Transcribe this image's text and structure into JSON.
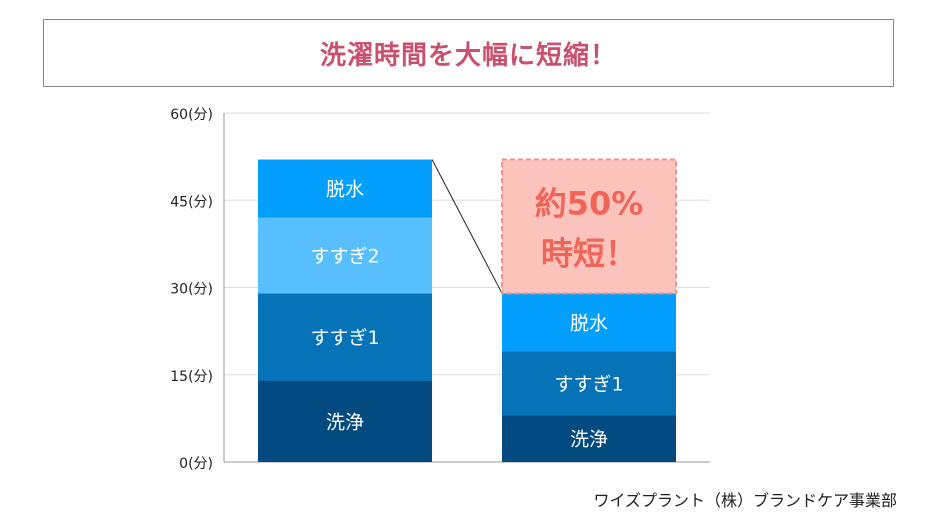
{
  "title": "洗濯時間を大幅に短縮！",
  "footer": "ワイズプラント（株）ブランドケア事業部",
  "chart_data": {
    "type": "bar",
    "stacked": true,
    "ylim": [
      0,
      60
    ],
    "yticks": [
      0,
      15,
      30,
      45,
      60
    ],
    "ytick_labels": [
      "0(分)",
      "15(分)",
      "30(分)",
      "45(分)",
      "60(分)"
    ],
    "grid": true,
    "categories": [
      "",
      ""
    ],
    "series": [
      {
        "name": "洗浄",
        "values": [
          14,
          8
        ],
        "color": "#024a7f"
      },
      {
        "name": "すすぎ1",
        "values": [
          15,
          11
        ],
        "color": "#0673b9"
      },
      {
        "name": "すすぎ2",
        "values": [
          13,
          0
        ],
        "color": "#57bffc"
      },
      {
        "name": "脱水",
        "values": [
          10,
          10
        ],
        "color": "#02a0fc"
      }
    ],
    "annotation": {
      "lines": [
        "約50%",
        "時短！"
      ],
      "from": 29,
      "to": 52,
      "fill": "#fbc3bb",
      "border": "#f5918a",
      "text_color": "#f0655a"
    }
  }
}
